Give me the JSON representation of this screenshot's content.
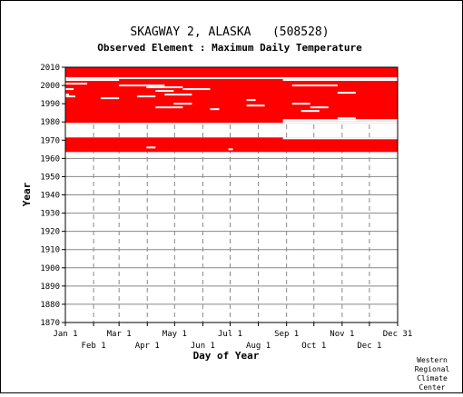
{
  "chart_data": {
    "type": "heatmap",
    "title": "SKAGWAY 2, ALASKA   (508528)",
    "subtitle": "Observed Element : Maximum Daily Temperature",
    "xlabel": "Day of Year",
    "ylabel": "Year",
    "xlim": [
      1,
      366
    ],
    "ylim": [
      1870,
      2010
    ],
    "y_ticks": [
      1870,
      1880,
      1890,
      1900,
      1910,
      1920,
      1930,
      1940,
      1950,
      1960,
      1970,
      1980,
      1990,
      2000,
      2010
    ],
    "x_ticks_top_row": [
      {
        "label": "Jan 1",
        "day": 1
      },
      {
        "label": "Mar 1",
        "day": 60
      },
      {
        "label": "May 1",
        "day": 121
      },
      {
        "label": "Jul 1",
        "day": 182
      },
      {
        "label": "Sep 1",
        "day": 244
      },
      {
        "label": "Nov 1",
        "day": 305
      },
      {
        "label": "Dec 31",
        "day": 366
      }
    ],
    "x_ticks_bottom_row": [
      {
        "label": "Feb 1",
        "day": 32
      },
      {
        "label": "Apr 1",
        "day": 91
      },
      {
        "label": "Jun 1",
        "day": 152
      },
      {
        "label": "Aug 1",
        "day": 213
      },
      {
        "label": "Oct 1",
        "day": 274
      },
      {
        "label": "Dec 1",
        "day": 335
      }
    ],
    "data_color": "#ff0000",
    "grid": true,
    "data_present_years": [
      [
        1963.5,
        1971.5
      ],
      [
        1979.5,
        2010
      ]
    ],
    "data_missing_gaps": [
      {
        "year": 2004,
        "start_day": 1,
        "end_day": 366
      },
      {
        "year": 2003,
        "start_day": 1,
        "end_day": 60
      },
      {
        "year": 2003,
        "start_day": 240,
        "end_day": 366
      },
      {
        "year": 2001,
        "start_day": 1,
        "end_day": 25
      },
      {
        "year": 2000,
        "start_day": 60,
        "end_day": 110
      },
      {
        "year": 2000,
        "start_day": 250,
        "end_day": 300
      },
      {
        "year": 1999,
        "start_day": 90,
        "end_day": 130
      },
      {
        "year": 1998,
        "start_day": 1,
        "end_day": 10
      },
      {
        "year": 1998,
        "start_day": 130,
        "end_day": 160
      },
      {
        "year": 1997,
        "start_day": 100,
        "end_day": 120
      },
      {
        "year": 1996,
        "start_day": 300,
        "end_day": 320
      },
      {
        "year": 1995,
        "start_day": 1,
        "end_day": 5
      },
      {
        "year": 1995,
        "start_day": 110,
        "end_day": 140
      },
      {
        "year": 1994,
        "start_day": 1,
        "end_day": 12
      },
      {
        "year": 1994,
        "start_day": 80,
        "end_day": 100
      },
      {
        "year": 1993,
        "start_day": 40,
        "end_day": 60
      },
      {
        "year": 1992,
        "start_day": 200,
        "end_day": 210
      },
      {
        "year": 1990,
        "start_day": 120,
        "end_day": 140
      },
      {
        "year": 1990,
        "start_day": 250,
        "end_day": 270
      },
      {
        "year": 1989,
        "start_day": 200,
        "end_day": 220
      },
      {
        "year": 1988,
        "start_day": 100,
        "end_day": 130
      },
      {
        "year": 1988,
        "start_day": 270,
        "end_day": 290
      },
      {
        "year": 1987,
        "start_day": 160,
        "end_day": 170
      },
      {
        "year": 1986,
        "start_day": 260,
        "end_day": 280
      },
      {
        "year": 1982,
        "start_day": 300,
        "end_day": 320
      },
      {
        "year": 1981,
        "start_day": 240,
        "end_day": 366
      },
      {
        "year": 1980,
        "start_day": 240,
        "end_day": 366
      },
      {
        "year": 1971,
        "start_day": 240,
        "end_day": 366
      },
      {
        "year": 1966,
        "start_day": 90,
        "end_day": 100
      },
      {
        "year": 1965,
        "start_day": 180,
        "end_day": 185
      }
    ]
  },
  "credit": [
    "Western",
    "Regional",
    "Climate",
    "Center"
  ]
}
